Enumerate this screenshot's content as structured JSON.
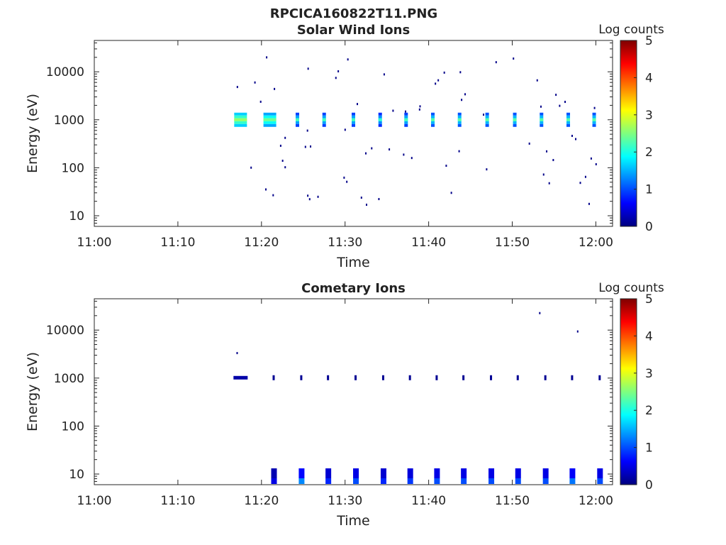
{
  "figure_title": "RPCICA160822T11.PNG",
  "colors": {
    "colormap": [
      "#00007f",
      "#0000ff",
      "#007fff",
      "#00ffff",
      "#7fff7f",
      "#ffff00",
      "#ff7f00",
      "#ff0000",
      "#7f0000"
    ]
  },
  "chart_data": [
    {
      "type": "heatmap",
      "title": "Solar Wind Ions",
      "xlabel": "Time",
      "ylabel": "Energy (eV)",
      "x_ticks": [
        "11:00",
        "11:10",
        "11:20",
        "11:30",
        "11:40",
        "11:50",
        "12:00"
      ],
      "y_ticks": [
        "10",
        "100",
        "1000",
        "10000"
      ],
      "xlim": [
        "11:00",
        "12:02"
      ],
      "ylim": [
        6,
        45000
      ],
      "y_scale": "log",
      "colorbar": {
        "label": "Log counts",
        "ticks": [
          "0",
          "1",
          "2",
          "3",
          "4",
          "5"
        ],
        "range": [
          0,
          5
        ]
      },
      "peaks": [
        {
          "time": "11:17.5",
          "energy": 1000,
          "log_counts": 2.6
        },
        {
          "time": "11:21",
          "energy": 1000,
          "log_counts": 2.4
        },
        {
          "time": "11:24.3",
          "energy": 1000,
          "log_counts": 2.2
        },
        {
          "time": "11:27.5",
          "energy": 1000,
          "log_counts": 2.2
        },
        {
          "time": "11:31",
          "energy": 1000,
          "log_counts": 2.2
        },
        {
          "time": "11:34.2",
          "energy": 1000,
          "log_counts": 2.1
        },
        {
          "time": "11:37.3",
          "energy": 1000,
          "log_counts": 2.2
        },
        {
          "time": "11:40.5",
          "energy": 1000,
          "log_counts": 2.3
        },
        {
          "time": "11:43.7",
          "energy": 1000,
          "log_counts": 2.3
        },
        {
          "time": "11:47",
          "energy": 1000,
          "log_counts": 2.3
        },
        {
          "time": "11:50.3",
          "energy": 1000,
          "log_counts": 2.3
        },
        {
          "time": "11:53.5",
          "energy": 1000,
          "log_counts": 2.3
        },
        {
          "time": "11:56.7",
          "energy": 1000,
          "log_counts": 2.3
        },
        {
          "time": "11:59.8",
          "energy": 1000,
          "log_counts": 2.3
        }
      ]
    },
    {
      "type": "heatmap",
      "title": "Cometary Ions",
      "xlabel": "Time",
      "ylabel": "Energy (eV)",
      "x_ticks": [
        "11:00",
        "11:10",
        "11:20",
        "11:30",
        "11:40",
        "11:50",
        "12:00"
      ],
      "y_ticks": [
        "10",
        "100",
        "1000",
        "10000"
      ],
      "xlim": [
        "11:00",
        "12:02"
      ],
      "ylim": [
        6,
        45000
      ],
      "y_scale": "log",
      "colorbar": {
        "label": "Log counts",
        "ticks": [
          "0",
          "1",
          "2",
          "3",
          "4",
          "5"
        ],
        "range": [
          0,
          5
        ]
      },
      "peaks": [
        {
          "time": "11:17.5",
          "energy": 1000,
          "log_counts": 0.2
        },
        {
          "time": "11:21.5",
          "energy": 10,
          "log_counts": 0.5
        },
        {
          "time": "11:24.8",
          "energy": 10,
          "log_counts": 1.3
        },
        {
          "time": "11:28",
          "energy": 10,
          "log_counts": 0.8
        },
        {
          "time": "11:31.3",
          "energy": 10,
          "log_counts": 1.0
        },
        {
          "time": "11:34.6",
          "energy": 10,
          "log_counts": 0.8
        },
        {
          "time": "11:37.8",
          "energy": 10,
          "log_counts": 0.9
        },
        {
          "time": "11:41",
          "energy": 10,
          "log_counts": 1.0
        },
        {
          "time": "11:44.2",
          "energy": 10,
          "log_counts": 1.0
        },
        {
          "time": "11:47.5",
          "energy": 10,
          "log_counts": 1.0
        },
        {
          "time": "11:50.7",
          "energy": 10,
          "log_counts": 1.0
        },
        {
          "time": "11:54",
          "energy": 10,
          "log_counts": 1.0
        },
        {
          "time": "11:57.2",
          "energy": 10,
          "log_counts": 1.2
        },
        {
          "time": "12:00.5",
          "energy": 10,
          "log_counts": 1.0
        }
      ]
    }
  ]
}
